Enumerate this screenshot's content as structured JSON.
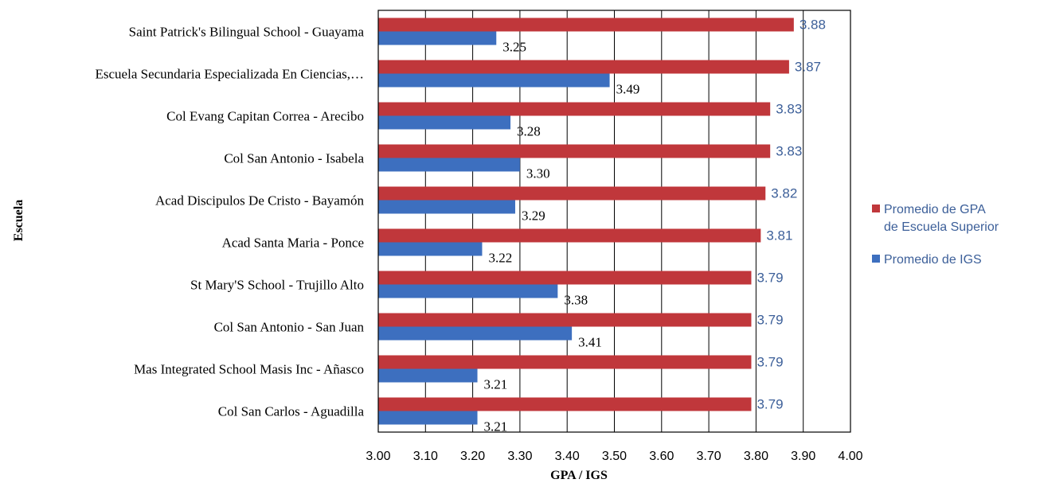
{
  "chart_data": {
    "type": "bar",
    "orientation": "horizontal",
    "categories": [
      "Saint Patrick's Bilingual School - Guayama",
      "Escuela Secundaria Especializada En Ciencias,…",
      "Col Evang Capitan Correa - Arecibo",
      "Col San Antonio - Isabela",
      "Acad Discipulos De Cristo - Bayamón",
      "Acad Santa Maria - Ponce",
      "St Mary'S School - Trujillo Alto",
      "Col San Antonio - San Juan",
      "Mas Integrated School Masis Inc - Añasco",
      "Col San Carlos - Aguadilla"
    ],
    "series": [
      {
        "name": "Promedio de GPA de Escuela Superior",
        "legend_lines": [
          "Promedio de GPA",
          "de Escuela Superior"
        ],
        "color": "#c0373b",
        "label_color": "#3c5f99",
        "values": [
          3.88,
          3.87,
          3.83,
          3.83,
          3.82,
          3.81,
          3.79,
          3.79,
          3.79,
          3.79
        ],
        "labels": [
          "3.88",
          "3.87",
          "3.83",
          "3.83",
          "3.82",
          "3.81",
          "3.79",
          "3.79",
          "3.79",
          "3.79"
        ]
      },
      {
        "name": "Promedio de IGS",
        "legend_lines": [
          "Promedio de IGS"
        ],
        "color": "#3d6fbf",
        "label_color": "#000000",
        "values": [
          3.25,
          3.49,
          3.28,
          3.3,
          3.29,
          3.22,
          3.38,
          3.41,
          3.21,
          3.21
        ],
        "labels": [
          "3.25",
          "3.49",
          "3.28",
          "3.30",
          "3.29",
          "3.22",
          "3.38",
          "3.41",
          "3.21",
          "3.21"
        ]
      }
    ],
    "xlim": [
      3.0,
      4.0
    ],
    "xticks": [
      "3.00",
      "3.10",
      "3.20",
      "3.30",
      "3.40",
      "3.50",
      "3.60",
      "3.70",
      "3.80",
      "3.90",
      "4.00"
    ],
    "xlabel": "GPA / IGS",
    "ylabel": "Escuela",
    "grid": "vertical",
    "legend": "right"
  }
}
